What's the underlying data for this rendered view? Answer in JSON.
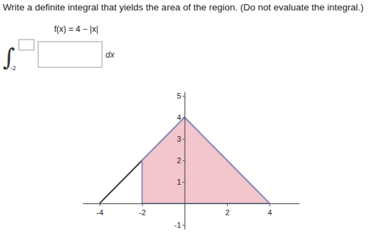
{
  "question": "Write a definite integral that yields the area of the region. (Do not evaluate the integral.)",
  "function_label": "f(x) = 4 − |x|",
  "integral_sign": "∫",
  "lower_limit": "-2",
  "differential": "dx",
  "chart_data": {
    "type": "line",
    "xlim": [
      -4.8,
      5.4
    ],
    "ylim": [
      -1.2,
      5.2
    ],
    "xticks": [
      -4,
      -2,
      2,
      4
    ],
    "yticks": [
      -1,
      1,
      2,
      3,
      4,
      5
    ],
    "series": [
      {
        "type": "line",
        "color": "#333333",
        "x": [
          -4,
          0,
          4
        ],
        "values": [
          0,
          4,
          0
        ]
      },
      {
        "type": "area",
        "color": "#f3c5cc",
        "x": [
          -2,
          0,
          4
        ],
        "values": [
          2,
          4,
          0
        ]
      }
    ]
  }
}
